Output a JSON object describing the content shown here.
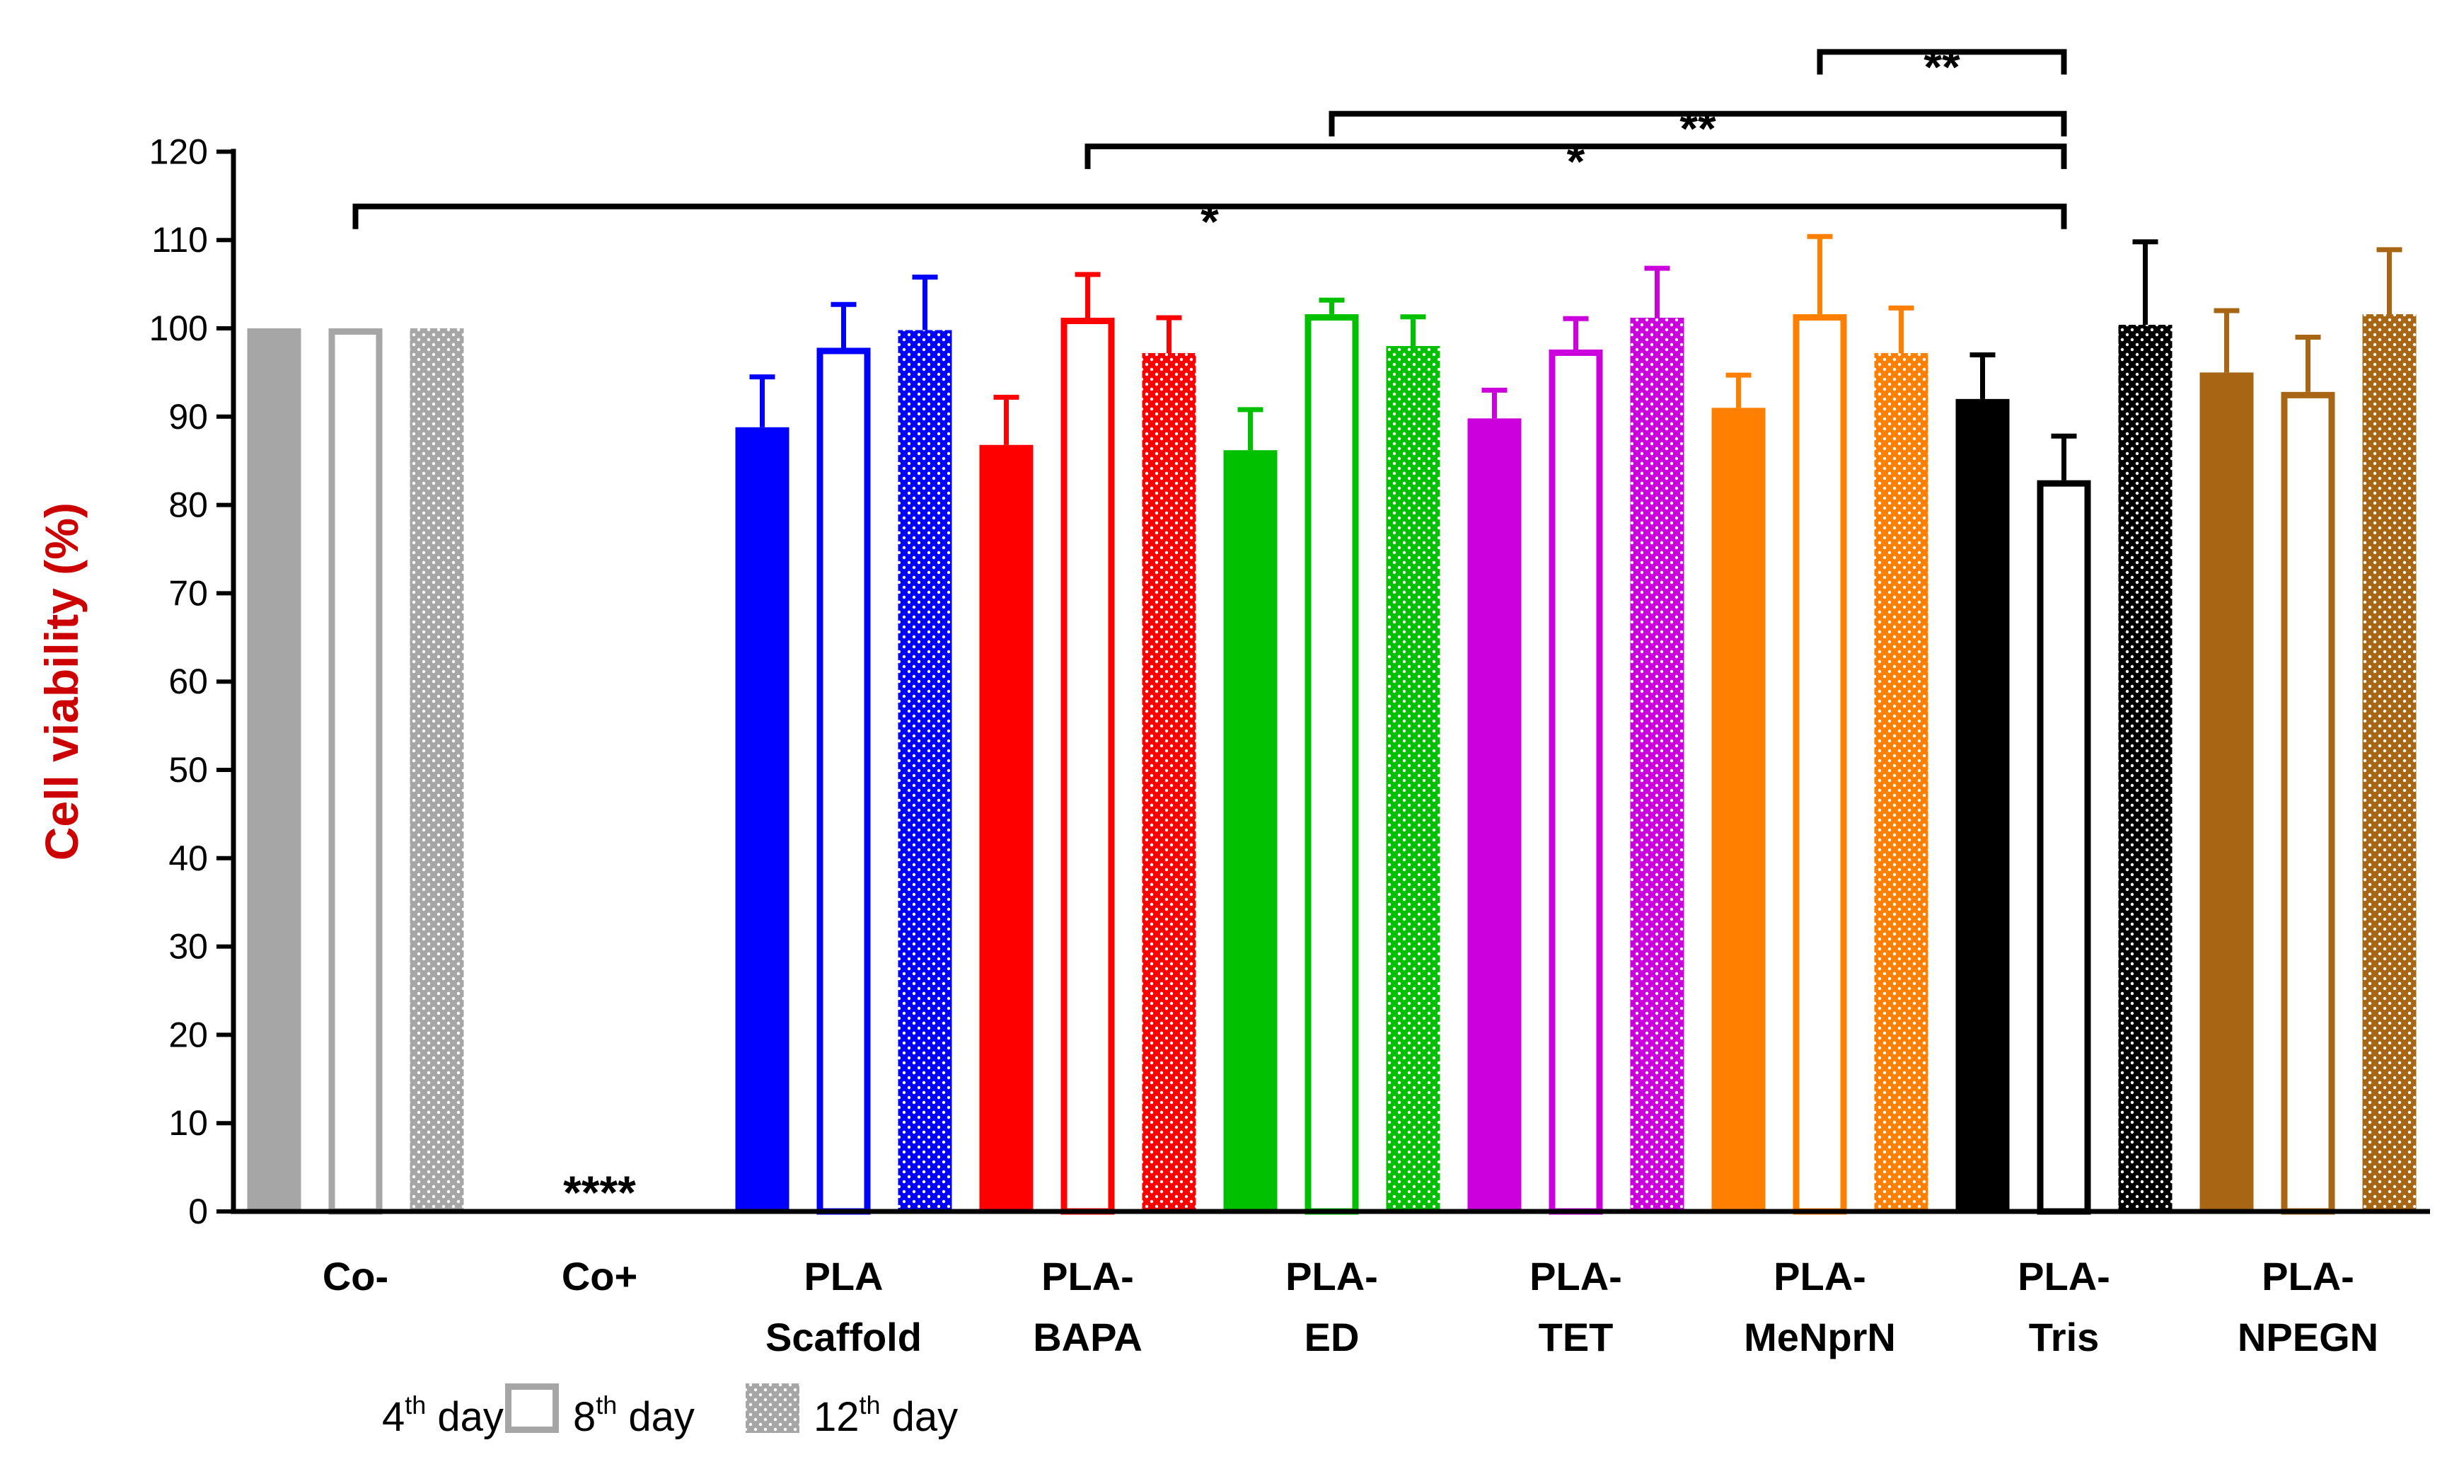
{
  "chart_data": {
    "type": "bar",
    "title": "",
    "xlabel": "",
    "ylabel": "Cell viability (%)",
    "ylim": [
      0,
      120
    ],
    "yticks": [
      0,
      10,
      20,
      30,
      40,
      50,
      60,
      70,
      80,
      90,
      100,
      110,
      120
    ],
    "grid": false,
    "categories": [
      {
        "line1": "Co-",
        "line2": "",
        "color": "#a6a6a6"
      },
      {
        "line1": "Co+",
        "line2": "",
        "color": "#a6a6a6"
      },
      {
        "line1": "PLA",
        "line2": "Scaffold",
        "color": "#0000ff"
      },
      {
        "line1": "PLA-",
        "line2": "BAPA",
        "color": "#ff0000"
      },
      {
        "line1": "PLA-",
        "line2": "ED",
        "color": "#00c000"
      },
      {
        "line1": "PLA-",
        "line2": "TET",
        "color": "#cc00dd"
      },
      {
        "line1": "PLA-",
        "line2": "MeNprN",
        "color": "#ff8000"
      },
      {
        "line1": "PLA-",
        "line2": "Tris",
        "color": "#000000"
      },
      {
        "line1": "PLA-",
        "line2": "NPEGN",
        "color": "#a86614"
      }
    ],
    "series": [
      {
        "name": "4th day",
        "style": "solid",
        "values": [
          100,
          0,
          88.8,
          86.8,
          86.2,
          89.8,
          91.0,
          92.0,
          95.0
        ],
        "errors": [
          0,
          0,
          5.7,
          5.4,
          4.6,
          3.2,
          3.7,
          5.0,
          7.0
        ]
      },
      {
        "name": "8th day",
        "style": "open",
        "values": [
          100,
          0,
          97.8,
          101.2,
          101.6,
          97.6,
          101.6,
          82.8,
          92.8
        ],
        "errors": [
          0,
          0,
          4.9,
          4.9,
          1.6,
          3.5,
          8.8,
          5.0,
          6.2
        ]
      },
      {
        "name": "12th day",
        "style": "dotted",
        "values": [
          100,
          0,
          99.8,
          97.2,
          98.0,
          101.2,
          97.2,
          100.4,
          101.6
        ],
        "errors": [
          0,
          0,
          6.0,
          4.0,
          3.3,
          5.6,
          5.1,
          9.4,
          7.3
        ]
      }
    ],
    "annotations": [
      {
        "text": "****",
        "category": 1,
        "value": 0
      }
    ],
    "significance": [
      {
        "text": "*",
        "from_category": 0,
        "from_series": 1,
        "to_category": 7,
        "to_series": 1,
        "level": 113.8
      },
      {
        "text": "*",
        "from_category": 3,
        "from_series": 1,
        "to_category": 7,
        "to_series": 1,
        "level": 120.6
      },
      {
        "text": "**",
        "from_category": 4,
        "from_series": 1,
        "to_category": 7,
        "to_series": 1,
        "level": 124.3
      },
      {
        "text": "**",
        "from_category": 6,
        "from_series": 1,
        "to_category": 7,
        "to_series": 1,
        "level": 131.3
      }
    ],
    "legend": {
      "position": "bottom-left",
      "items": [
        {
          "base": "4",
          "sup": "th",
          "rest": " day",
          "style": "solid"
        },
        {
          "base": "8",
          "sup": "th",
          "rest": " day",
          "style": "open"
        },
        {
          "base": "12",
          "sup": "th",
          "rest": " day",
          "style": "dotted"
        }
      ],
      "swatch_color": "#a6a6a6"
    }
  }
}
